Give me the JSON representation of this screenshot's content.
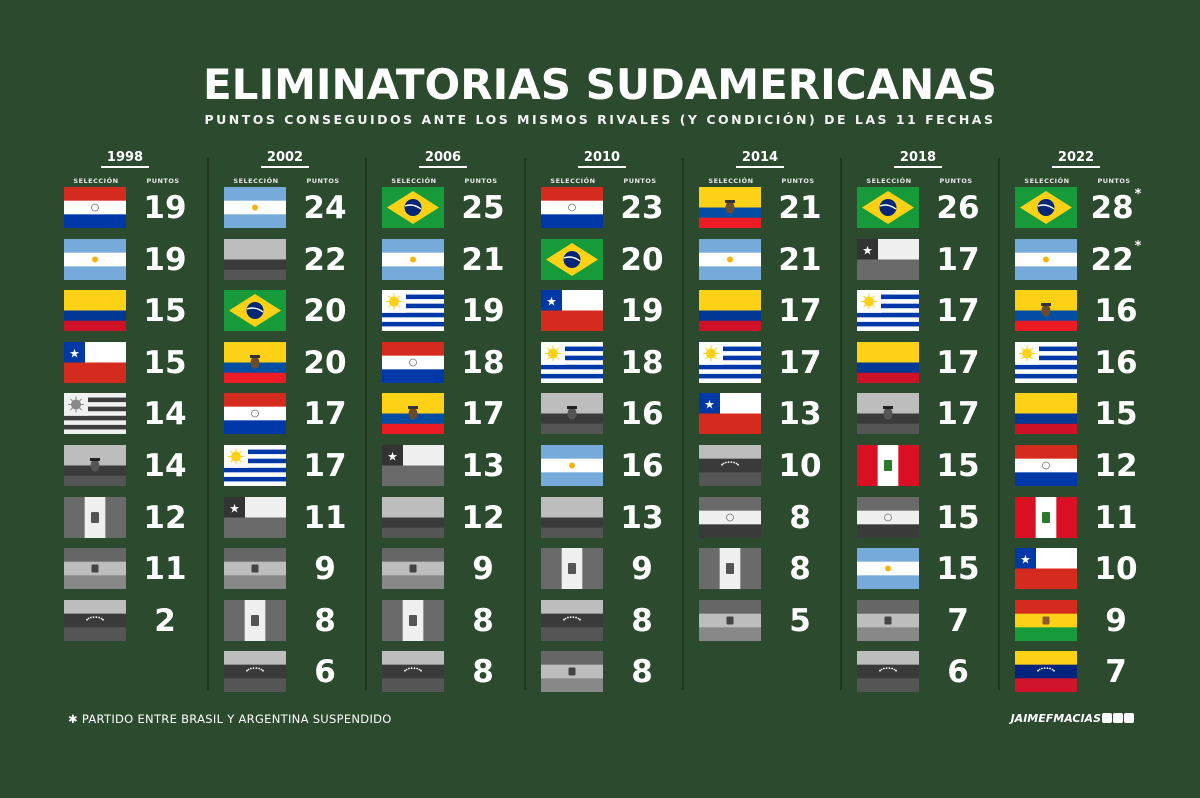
{
  "title": "ELIMINATORIAS SUDAMERICANAS",
  "subtitle": "PUNTOS CONSEGUIDOS ANTE LOS MISMOS RIVALES (Y CONDICIÓN) DE LAS 11 FECHAS",
  "header_labels": {
    "seleccion": "SELECCIÓN",
    "puntos": "PUNTOS"
  },
  "footnote": "✱ PARTIDO ENTRE BRASIL Y ARGENTINA SUSPENDIDO",
  "credit": "JAIMEFMACIAS",
  "colors": {
    "background": "#2c4a2e",
    "text": "#ffffff"
  },
  "columns": [
    {
      "year": "1998",
      "rows": [
        {
          "flag": "paraguay",
          "points": "19",
          "mark": ""
        },
        {
          "flag": "argentina",
          "points": "19",
          "mark": ""
        },
        {
          "flag": "colombia",
          "points": "15",
          "mark": ""
        },
        {
          "flag": "chile",
          "points": "15",
          "mark": ""
        },
        {
          "flag": "uruguay",
          "points": "14",
          "mark": "",
          "gray": true
        },
        {
          "flag": "ecuador",
          "points": "14",
          "mark": "",
          "gray": true
        },
        {
          "flag": "peru",
          "points": "12",
          "mark": "",
          "gray": true
        },
        {
          "flag": "bolivia",
          "points": "11",
          "mark": "",
          "gray": true
        },
        {
          "flag": "venezuela",
          "points": "2",
          "mark": "",
          "gray": true
        }
      ]
    },
    {
      "year": "2002",
      "rows": [
        {
          "flag": "argentina",
          "points": "24",
          "mark": ""
        },
        {
          "flag": "colombia",
          "points": "22",
          "mark": "",
          "gray": true
        },
        {
          "flag": "brazil",
          "points": "20",
          "mark": ""
        },
        {
          "flag": "ecuador",
          "points": "20",
          "mark": ""
        },
        {
          "flag": "paraguay",
          "points": "17",
          "mark": ""
        },
        {
          "flag": "uruguay",
          "points": "17",
          "mark": ""
        },
        {
          "flag": "chile",
          "points": "11",
          "mark": "",
          "gray": true
        },
        {
          "flag": "bolivia",
          "points": "9",
          "mark": "",
          "gray": true
        },
        {
          "flag": "peru",
          "points": "8",
          "mark": "",
          "gray": true
        },
        {
          "flag": "venezuela",
          "points": "6",
          "mark": "",
          "gray": true
        }
      ]
    },
    {
      "year": "2006",
      "rows": [
        {
          "flag": "brazil",
          "points": "25",
          "mark": ""
        },
        {
          "flag": "argentina",
          "points": "21",
          "mark": ""
        },
        {
          "flag": "uruguay",
          "points": "19",
          "mark": ""
        },
        {
          "flag": "paraguay",
          "points": "18",
          "mark": ""
        },
        {
          "flag": "ecuador",
          "points": "17",
          "mark": ""
        },
        {
          "flag": "chile",
          "points": "13",
          "mark": "",
          "gray": true
        },
        {
          "flag": "colombia",
          "points": "12",
          "mark": "",
          "gray": true
        },
        {
          "flag": "bolivia",
          "points": "9",
          "mark": "",
          "gray": true
        },
        {
          "flag": "peru",
          "points": "8",
          "mark": "",
          "gray": true
        },
        {
          "flag": "venezuela",
          "points": "8",
          "mark": "",
          "gray": true
        }
      ]
    },
    {
      "year": "2010",
      "rows": [
        {
          "flag": "paraguay",
          "points": "23",
          "mark": ""
        },
        {
          "flag": "brazil",
          "points": "20",
          "mark": ""
        },
        {
          "flag": "chile",
          "points": "19",
          "mark": ""
        },
        {
          "flag": "uruguay",
          "points": "18",
          "mark": ""
        },
        {
          "flag": "ecuador",
          "points": "16",
          "mark": "",
          "gray": true
        },
        {
          "flag": "argentina",
          "points": "16",
          "mark": ""
        },
        {
          "flag": "colombia",
          "points": "13",
          "mark": "",
          "gray": true
        },
        {
          "flag": "peru",
          "points": "9",
          "mark": "",
          "gray": true
        },
        {
          "flag": "venezuela",
          "points": "8",
          "mark": "",
          "gray": true
        },
        {
          "flag": "bolivia",
          "points": "8",
          "mark": "",
          "gray": true
        }
      ]
    },
    {
      "year": "2014",
      "rows": [
        {
          "flag": "ecuador",
          "points": "21",
          "mark": ""
        },
        {
          "flag": "argentina",
          "points": "21",
          "mark": ""
        },
        {
          "flag": "colombia",
          "points": "17",
          "mark": ""
        },
        {
          "flag": "uruguay",
          "points": "17",
          "mark": ""
        },
        {
          "flag": "chile",
          "points": "13",
          "mark": ""
        },
        {
          "flag": "venezuela",
          "points": "10",
          "mark": "",
          "gray": true
        },
        {
          "flag": "paraguay",
          "points": "8",
          "mark": "",
          "gray": true
        },
        {
          "flag": "peru",
          "points": "8",
          "mark": "",
          "gray": true
        },
        {
          "flag": "bolivia",
          "points": "5",
          "mark": "",
          "gray": true
        }
      ]
    },
    {
      "year": "2018",
      "rows": [
        {
          "flag": "brazil",
          "points": "26",
          "mark": ""
        },
        {
          "flag": "chile",
          "points": "17",
          "mark": "",
          "gray": true
        },
        {
          "flag": "uruguay",
          "points": "17",
          "mark": ""
        },
        {
          "flag": "colombia",
          "points": "17",
          "mark": ""
        },
        {
          "flag": "ecuador",
          "points": "17",
          "mark": "",
          "gray": true
        },
        {
          "flag": "peru",
          "points": "15",
          "mark": ""
        },
        {
          "flag": "paraguay",
          "points": "15",
          "mark": "",
          "gray": true
        },
        {
          "flag": "argentina",
          "points": "15",
          "mark": ""
        },
        {
          "flag": "bolivia",
          "points": "7",
          "mark": "",
          "gray": true
        },
        {
          "flag": "venezuela",
          "points": "6",
          "mark": "",
          "gray": true
        }
      ]
    },
    {
      "year": "2022",
      "rows": [
        {
          "flag": "brazil",
          "points": "28",
          "mark": "*"
        },
        {
          "flag": "argentina",
          "points": "22",
          "mark": "*"
        },
        {
          "flag": "ecuador",
          "points": "16",
          "mark": ""
        },
        {
          "flag": "uruguay",
          "points": "16",
          "mark": ""
        },
        {
          "flag": "colombia",
          "points": "15",
          "mark": ""
        },
        {
          "flag": "paraguay",
          "points": "12",
          "mark": ""
        },
        {
          "flag": "peru",
          "points": "11",
          "mark": ""
        },
        {
          "flag": "chile",
          "points": "10",
          "mark": ""
        },
        {
          "flag": "bolivia",
          "points": "9",
          "mark": ""
        },
        {
          "flag": "venezuela",
          "points": "7",
          "mark": ""
        }
      ]
    }
  ]
}
